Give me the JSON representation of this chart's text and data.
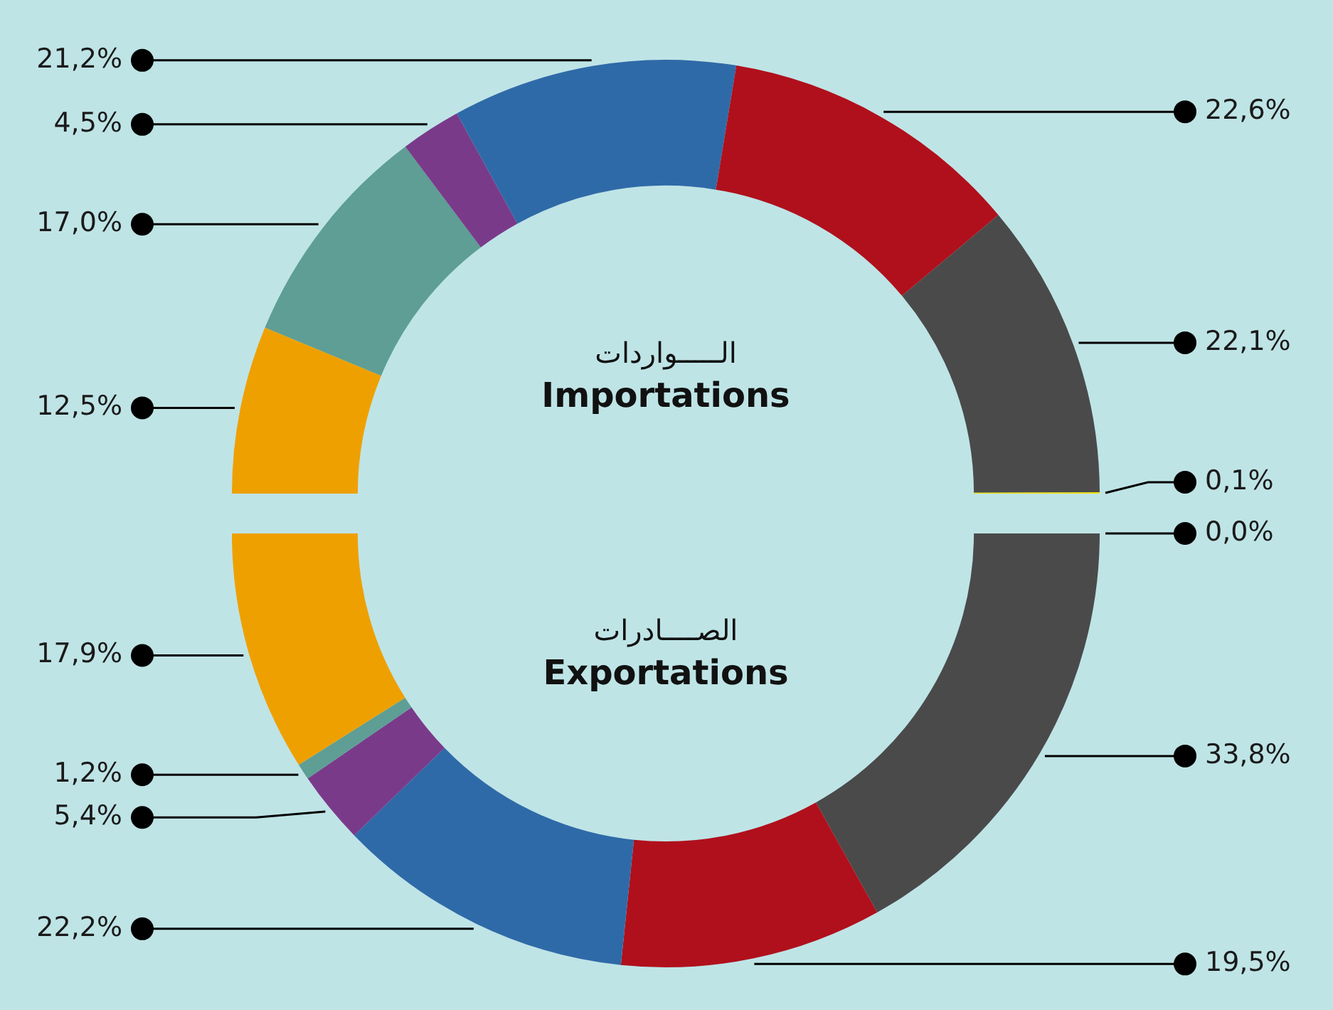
{
  "chart_data": [
    {
      "type": "donut",
      "title": "الـــــواردات",
      "subtitle": "Importations",
      "categories": [
        null,
        null,
        null,
        null,
        null,
        null,
        null
      ],
      "values": [
        12.5,
        17.0,
        4.5,
        21.2,
        22.6,
        22.1,
        0.1
      ],
      "colors": [
        "#eea000",
        "#5e9e94",
        "#7a3a8a",
        "#2f6aa8",
        "#b0101c",
        "#4a4a4a",
        "#f5e000"
      ],
      "value_labels": [
        "12,5%",
        "17,0%",
        "4,5%",
        "21,2%",
        "22,6%",
        "22,1%",
        "0,1%"
      ]
    },
    {
      "type": "donut",
      "title": "الصــــادرات",
      "subtitle": "Exportations",
      "categories": [
        null,
        null,
        null,
        null,
        null,
        null,
        null
      ],
      "values": [
        0.0,
        33.8,
        19.5,
        22.2,
        5.4,
        1.2,
        17.9
      ],
      "colors": [
        "#f5e000",
        "#4a4a4a",
        "#b0101c",
        "#2f6aa8",
        "#7a3a8a",
        "#5e9e94",
        "#eea000"
      ],
      "value_labels": [
        "0,0%",
        "33,8%",
        "19,5%",
        "22,2%",
        "5,4%",
        "1,2%",
        "17,9%"
      ]
    }
  ]
}
